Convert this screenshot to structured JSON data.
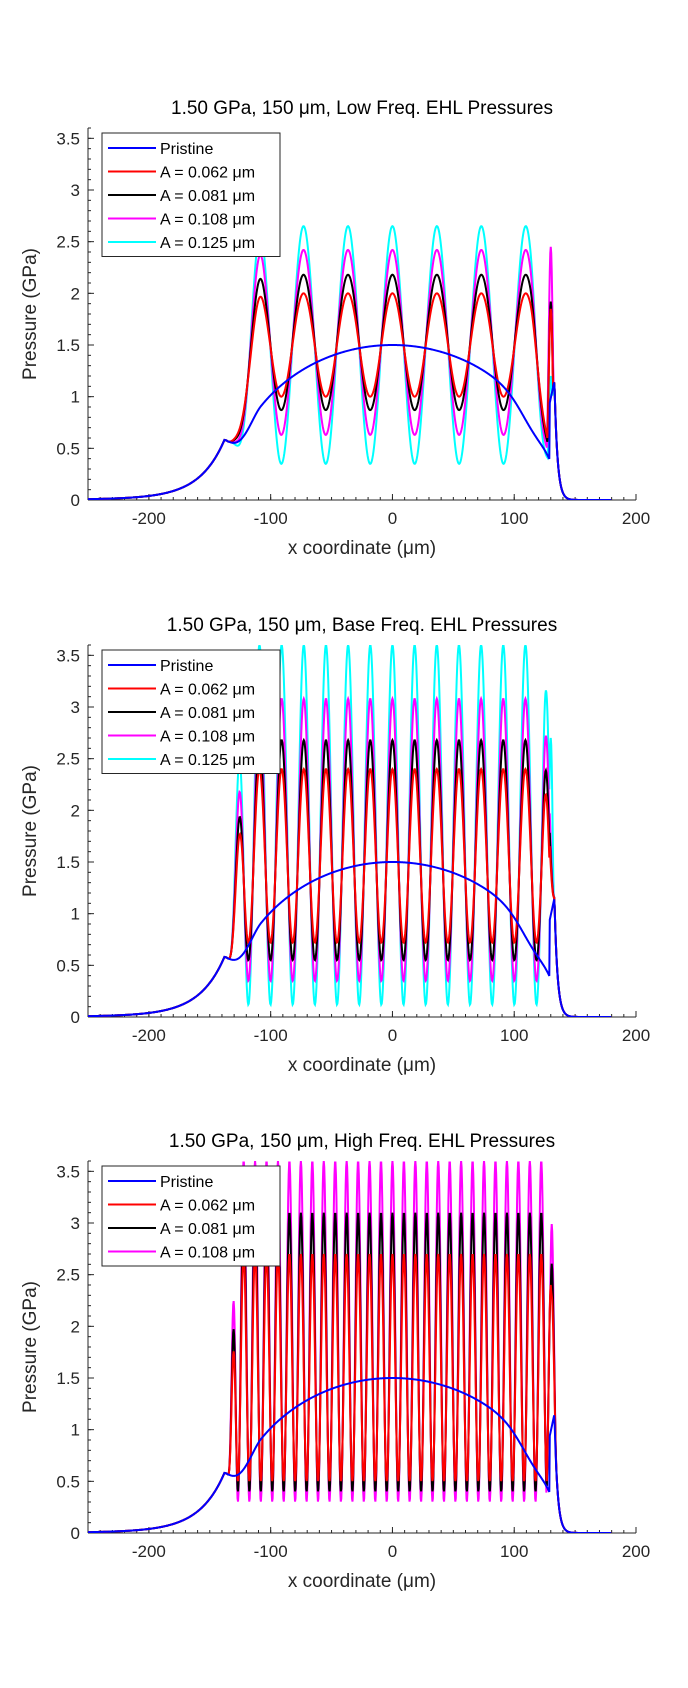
{
  "chart_data": [
    {
      "type": "line",
      "title": "1.50 GPa, 150 μm, Low Freq. EHL Pressures",
      "xlabel": "x coordinate (μm)",
      "ylabel": "Pressure (GPa)",
      "xlim": [
        -250,
        200
      ],
      "ylim": [
        0,
        3.6
      ],
      "xticks": [
        -200,
        -100,
        0,
        100,
        200
      ],
      "xtick_labels": [
        "-200",
        "-100",
        "0",
        "100",
        "200"
      ],
      "yticks": [
        0,
        0.5,
        1,
        1.5,
        2,
        2.5,
        3,
        3.5
      ],
      "ytick_labels": [
        "0",
        "0.5",
        "1",
        "1.5",
        "2",
        "2.5",
        "3",
        "3.5"
      ],
      "grid": false,
      "legend_position": "top-left",
      "pristine": {
        "name": "Pristine",
        "color": "#0000ff",
        "x_start": -250,
        "x_end": 180,
        "contact_half_width": 135,
        "peak": 1.48,
        "exit_spike_x": 133,
        "exit_spike": 1.15,
        "exit_dip": 0.93
      },
      "wavelength": 36.5,
      "series": [
        {
          "name": "A = 0.062 μm",
          "color": "#ff0000",
          "high": 2.0,
          "low": 1.0,
          "edge_peak": 1.85
        },
        {
          "name": "A = 0.081 μm",
          "color": "#000000",
          "high": 2.18,
          "low": 0.87,
          "edge_peak": 1.92
        },
        {
          "name": "A = 0.108 μm",
          "color": "#ff00ff",
          "high": 2.42,
          "low": 0.63,
          "edge_peak": 2.45
        },
        {
          "name": "A = 0.125 μm",
          "color": "#00ffff",
          "high": 2.65,
          "low": 0.35,
          "edge_peak": 1.2
        }
      ]
    },
    {
      "type": "line",
      "title": "1.50 GPa, 150 μm, Base Freq. EHL Pressures",
      "xlabel": "x coordinate (μm)",
      "ylabel": "Pressure (GPa)",
      "xlim": [
        -250,
        200
      ],
      "ylim": [
        0,
        3.6
      ],
      "xticks": [
        -200,
        -100,
        0,
        100,
        200
      ],
      "xtick_labels": [
        "-200",
        "-100",
        "0",
        "100",
        "200"
      ],
      "yticks": [
        0,
        0.5,
        1,
        1.5,
        2,
        2.5,
        3,
        3.5
      ],
      "ytick_labels": [
        "0",
        "0.5",
        "1",
        "1.5",
        "2",
        "2.5",
        "3",
        "3.5"
      ],
      "grid": false,
      "legend_position": "top-left",
      "pristine": {
        "name": "Pristine",
        "color": "#0000ff",
        "x_start": -250,
        "x_end": 180,
        "contact_half_width": 135,
        "peak": 1.48,
        "exit_spike_x": 133,
        "exit_spike": 1.15,
        "exit_dip": 0.93
      },
      "wavelength": 18.2,
      "series": [
        {
          "name": "A = 0.062 μm",
          "color": "#ff0000",
          "high": 2.4,
          "low": 0.72,
          "edge_peak": 1.15
        },
        {
          "name": "A = 0.081 μm",
          "color": "#000000",
          "high": 2.68,
          "low": 0.55,
          "edge_peak": 1.15
        },
        {
          "name": "A = 0.108 μm",
          "color": "#ff00ff",
          "high": 3.08,
          "low": 0.35,
          "edge_peak": 1.1
        },
        {
          "name": "A = 0.125 μm",
          "color": "#00ffff",
          "high": 3.6,
          "low": 0.12,
          "edge_peak": 2.7
        }
      ]
    },
    {
      "type": "line",
      "title": "1.50 GPa, 150 μm, High Freq. EHL Pressures",
      "xlabel": "x coordinate (μm)",
      "ylabel": "Pressure (GPa)",
      "xlim": [
        -250,
        200
      ],
      "ylim": [
        0,
        3.6
      ],
      "xticks": [
        -200,
        -100,
        0,
        100,
        200
      ],
      "xtick_labels": [
        "-200",
        "-100",
        "0",
        "100",
        "200"
      ],
      "yticks": [
        0,
        0.5,
        1,
        1.5,
        2,
        2.5,
        3,
        3.5
      ],
      "ytick_labels": [
        "0",
        "0.5",
        "1",
        "1.5",
        "2",
        "2.5",
        "3",
        "3.5"
      ],
      "grid": false,
      "legend_position": "top-left",
      "pristine": {
        "name": "Pristine",
        "color": "#0000ff",
        "x_start": -250,
        "x_end": 180,
        "contact_half_width": 135,
        "peak": 1.48,
        "exit_spike_x": 133,
        "exit_spike": 1.15,
        "exit_dip": 0.93
      },
      "wavelength": 9.4,
      "series": [
        {
          "name": "A = 0.062 μm",
          "color": "#ff0000",
          "high": 2.7,
          "low": 0.5,
          "edge_peak": 2.4
        },
        {
          "name": "A = 0.081 μm",
          "color": "#000000",
          "high": 3.1,
          "low": 0.4,
          "edge_peak": 2.35
        },
        {
          "name": "A = 0.108 μm",
          "color": "#ff00ff",
          "high": 3.6,
          "low": 0.3,
          "edge_peak": 2.4
        }
      ]
    }
  ]
}
